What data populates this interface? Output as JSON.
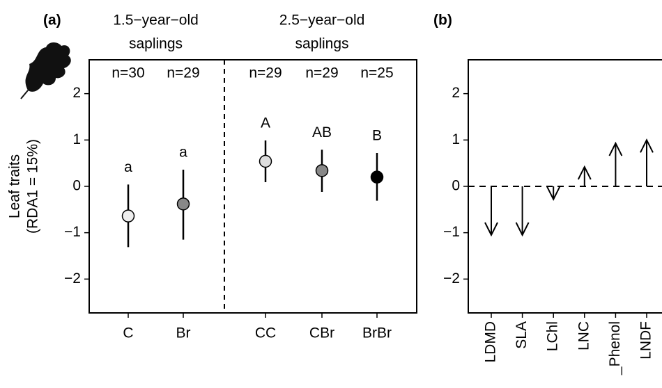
{
  "chart_data": [
    {
      "type": "errorbar",
      "panel_label": "(a)",
      "group_labels": [
        [
          "1.5−year−old",
          "saplings"
        ],
        [
          "2.5−year−old",
          "saplings"
        ]
      ],
      "ylabel": [
        "Leaf traits",
        "(RDA1 = 15%)"
      ],
      "categories": [
        "C",
        "Br",
        "CC",
        "CBr",
        "BrBr"
      ],
      "values": [
        -0.64,
        -0.38,
        0.54,
        0.34,
        0.2
      ],
      "lower": [
        -1.31,
        -1.15,
        0.09,
        -0.12,
        -0.31
      ],
      "upper": [
        0.04,
        0.36,
        0.99,
        0.79,
        0.72
      ],
      "colors": [
        "#eeeeee",
        "#888888",
        "#dddddd",
        "#888888",
        "#000000"
      ],
      "letters": [
        "a",
        "a",
        "A",
        "AB",
        "B"
      ],
      "n_labels": [
        "n=30",
        "n=29",
        "n=29",
        "n=29",
        "n=25"
      ],
      "ylim": [
        -2.73,
        2.73
      ],
      "yticks": [
        {
          "value": -2,
          "label": "−2"
        },
        {
          "value": -1,
          "label": "−1"
        },
        0,
        1,
        2
      ]
    },
    {
      "type": "arrow",
      "panel_label": "(b)",
      "categories": [
        "LDMD",
        "SLA",
        "LChl",
        "LNC",
        "_Phenol",
        "LNDF"
      ],
      "values": [
        -1.05,
        -1.05,
        -0.28,
        0.42,
        0.93,
        1.0
      ],
      "hline": 0,
      "ylim": [
        -2.73,
        2.73
      ],
      "yticks": [
        {
          "value": -2,
          "label": "−2"
        },
        {
          "value": -1,
          "label": "−1"
        },
        0,
        1,
        2
      ]
    }
  ]
}
